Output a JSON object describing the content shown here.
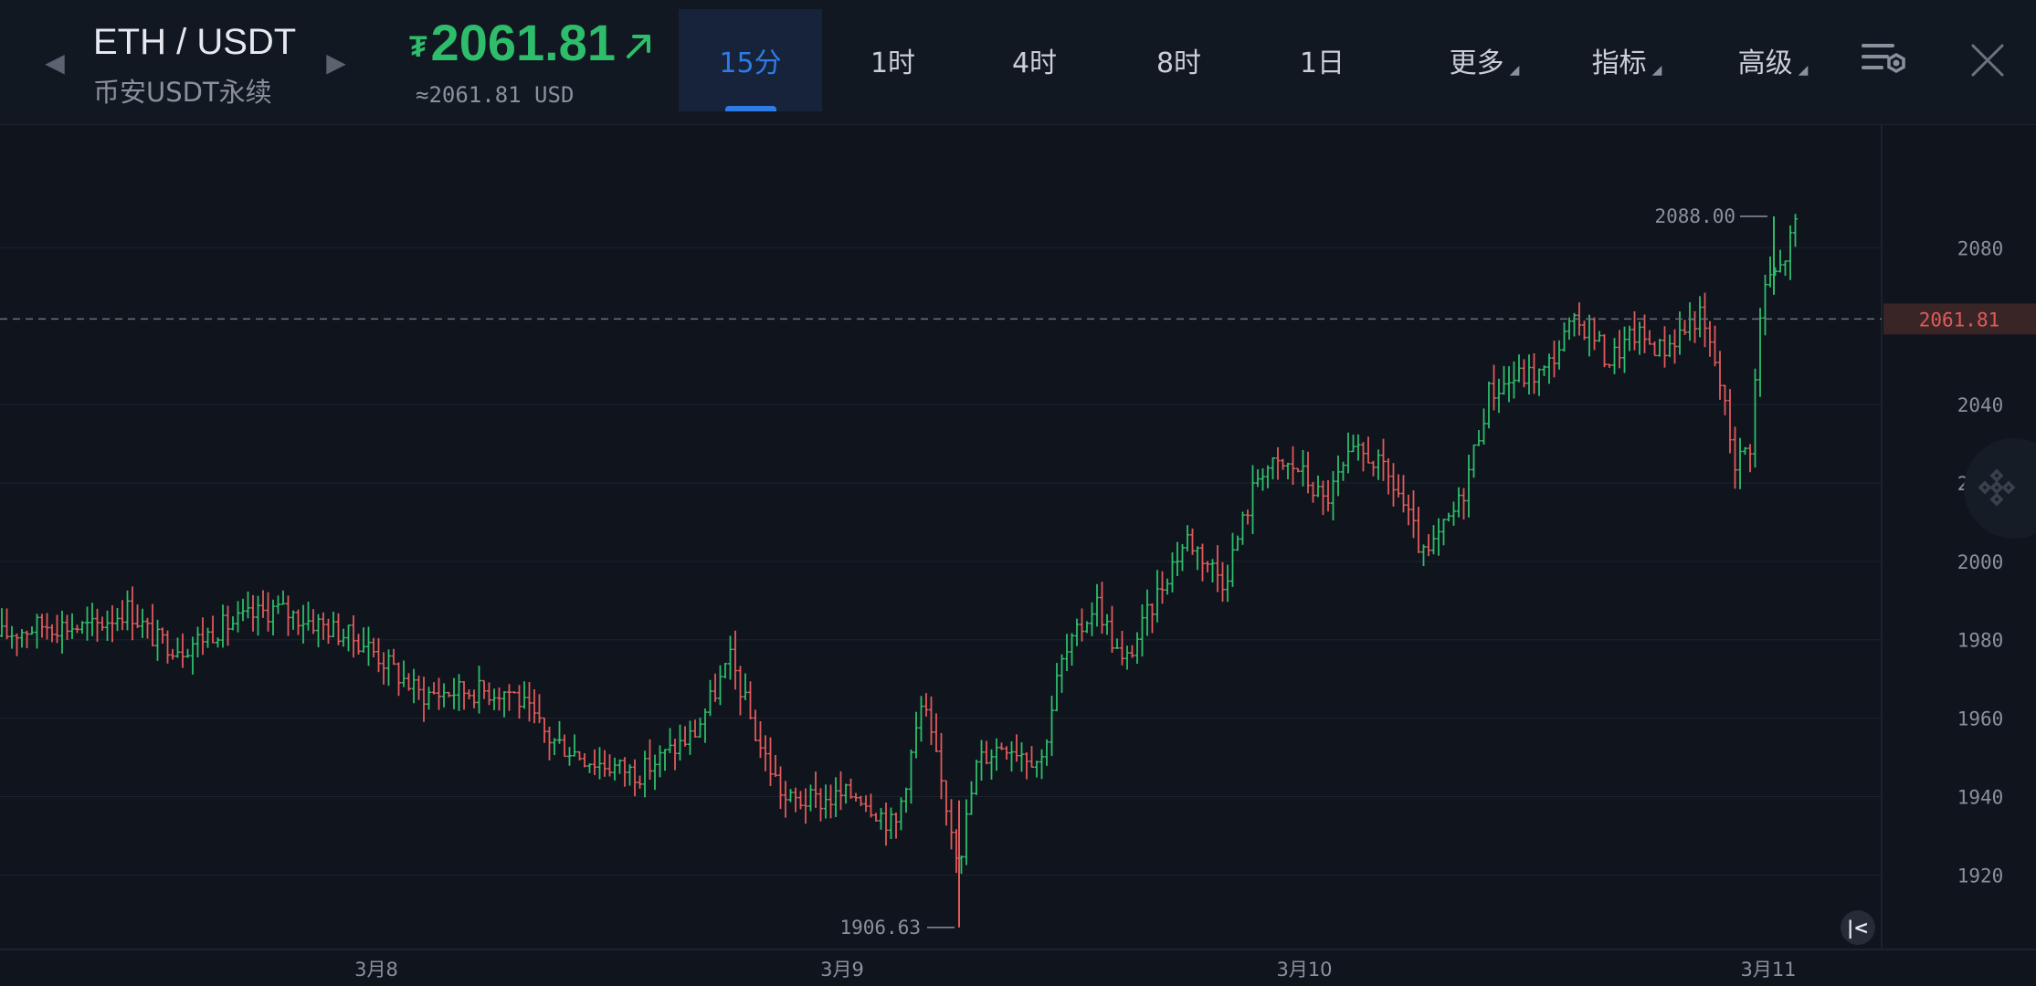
{
  "header": {
    "pair": "ETH / USDT",
    "subtitle": "币安USDT永续",
    "currency_symbol": "₮",
    "price": "2061.81",
    "price_usd": "≈2061.81 USD",
    "price_color": "#2ebd6b"
  },
  "tabs": [
    {
      "label": "15分",
      "active": true
    },
    {
      "label": "1时"
    },
    {
      "label": "4时"
    },
    {
      "label": "8时"
    },
    {
      "label": "1日"
    },
    {
      "label": "更多",
      "dropdown": true
    },
    {
      "label": "指标",
      "dropdown": true
    },
    {
      "label": "高级",
      "dropdown": true
    }
  ],
  "icons": {
    "prev": "chevron-left-icon",
    "next": "chevron-right-icon",
    "trend": "arrow-up-right-icon",
    "settings": "chart-settings-icon",
    "close": "close-icon",
    "fab": "binance-logo-icon",
    "jump": "jump-to-latest-icon"
  },
  "chart_data": {
    "type": "ohlc",
    "x_labels": [
      "3月8",
      "3月9",
      "3月10",
      "3月11"
    ],
    "y_ticks": [
      "2080",
      "2040",
      "2020",
      "2000",
      "1980",
      "1960",
      "1940",
      "1920"
    ],
    "ylim": [
      1901,
      2098
    ],
    "current_price": "2061.81",
    "high_label": "2088.00",
    "low_label": "1906.63",
    "up_color": "#2ebd6b",
    "down_color": "#e05a5a",
    "grid": true,
    "key_points": [
      {
        "x": "3月8",
        "price": 1981
      },
      {
        "x": "3月9",
        "price": 1941
      },
      {
        "x": "3月9",
        "price": 1906.63
      },
      {
        "x": "3月10",
        "price": 2028
      },
      {
        "x": "3月10",
        "price": 1995
      },
      {
        "x": "3月11",
        "price": 2068
      },
      {
        "x": "3月11",
        "price": 2088.0
      },
      {
        "x": "3月11",
        "price": 2061.81
      }
    ]
  }
}
